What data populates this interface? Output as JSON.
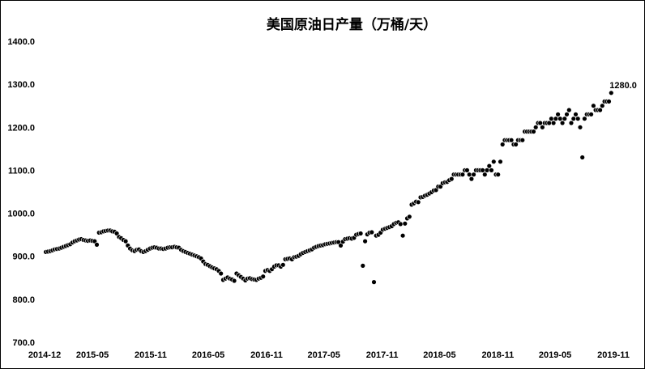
{
  "chart_data": {
    "type": "scatter",
    "title": "美国原油日产量（万桶/天）",
    "xlabel": "",
    "ylabel": "",
    "ylim": [
      700,
      1400
    ],
    "yticks": [
      "700.0",
      "800.0",
      "900.0",
      "1000.0",
      "1100.0",
      "1200.0",
      "1300.0",
      "1400.0"
    ],
    "xlim": [
      "2014-12",
      "2019-11"
    ],
    "xticks": [
      "2014-12",
      "2015-05",
      "2015-11",
      "2016-05",
      "2016-11",
      "2017-05",
      "2017-11",
      "2018-05",
      "2018-11",
      "2019-05",
      "2019-11"
    ],
    "grid": false,
    "legend": "none",
    "series_color": "#000000",
    "annotation": {
      "text": "1280.0",
      "x": "2019-10-25",
      "y": 1280
    },
    "points": [
      [
        "2014-12-05",
        910
      ],
      [
        "2014-12-12",
        911
      ],
      [
        "2014-12-19",
        912
      ],
      [
        "2014-12-26",
        914
      ],
      [
        "2015-01-02",
        916
      ],
      [
        "2015-01-09",
        917
      ],
      [
        "2015-01-16",
        918
      ],
      [
        "2015-01-23",
        920
      ],
      [
        "2015-01-30",
        922
      ],
      [
        "2015-02-06",
        924
      ],
      [
        "2015-02-13",
        926
      ],
      [
        "2015-02-20",
        928
      ],
      [
        "2015-02-27",
        932
      ],
      [
        "2015-03-06",
        935
      ],
      [
        "2015-03-13",
        937
      ],
      [
        "2015-03-20",
        939
      ],
      [
        "2015-03-27",
        940
      ],
      [
        "2015-04-03",
        938
      ],
      [
        "2015-04-10",
        937
      ],
      [
        "2015-04-17",
        936
      ],
      [
        "2015-04-24",
        937
      ],
      [
        "2015-05-01",
        936
      ],
      [
        "2015-05-08",
        935
      ],
      [
        "2015-05-15",
        927
      ],
      [
        "2015-05-22",
        955
      ],
      [
        "2015-05-29",
        956
      ],
      [
        "2015-06-05",
        958
      ],
      [
        "2015-06-12",
        959
      ],
      [
        "2015-06-19",
        960
      ],
      [
        "2015-06-26",
        960
      ],
      [
        "2015-07-03",
        958
      ],
      [
        "2015-07-10",
        957
      ],
      [
        "2015-07-17",
        953
      ],
      [
        "2015-07-24",
        945
      ],
      [
        "2015-07-31",
        942
      ],
      [
        "2015-08-07",
        938
      ],
      [
        "2015-08-14",
        935
      ],
      [
        "2015-08-21",
        925
      ],
      [
        "2015-08-28",
        918
      ],
      [
        "2015-09-04",
        914
      ],
      [
        "2015-09-11",
        912
      ],
      [
        "2015-09-18",
        915
      ],
      [
        "2015-09-25",
        916
      ],
      [
        "2015-10-02",
        912
      ],
      [
        "2015-10-09",
        910
      ],
      [
        "2015-10-16",
        912
      ],
      [
        "2015-10-23",
        915
      ],
      [
        "2015-10-30",
        918
      ],
      [
        "2015-11-06",
        920
      ],
      [
        "2015-11-13",
        921
      ],
      [
        "2015-11-20",
        920
      ],
      [
        "2015-11-27",
        918
      ],
      [
        "2015-12-04",
        918
      ],
      [
        "2015-12-11",
        917
      ],
      [
        "2015-12-18",
        918
      ],
      [
        "2015-12-25",
        920
      ],
      [
        "2016-01-01",
        921
      ],
      [
        "2016-01-08",
        921
      ],
      [
        "2016-01-15",
        922
      ],
      [
        "2016-01-22",
        921
      ],
      [
        "2016-01-29",
        920
      ],
      [
        "2016-02-05",
        915
      ],
      [
        "2016-02-12",
        912
      ],
      [
        "2016-02-19",
        910
      ],
      [
        "2016-02-26",
        908
      ],
      [
        "2016-03-04",
        906
      ],
      [
        "2016-03-11",
        904
      ],
      [
        "2016-03-18",
        902
      ],
      [
        "2016-03-25",
        900
      ],
      [
        "2016-04-01",
        898
      ],
      [
        "2016-04-08",
        895
      ],
      [
        "2016-04-15",
        888
      ],
      [
        "2016-04-22",
        882
      ],
      [
        "2016-04-29",
        880
      ],
      [
        "2016-05-06",
        877
      ],
      [
        "2016-05-13",
        874
      ],
      [
        "2016-05-20",
        872
      ],
      [
        "2016-05-27",
        870
      ],
      [
        "2016-06-03",
        866
      ],
      [
        "2016-06-10",
        860
      ],
      [
        "2016-06-17",
        845
      ],
      [
        "2016-06-24",
        848
      ],
      [
        "2016-07-01",
        851
      ],
      [
        "2016-07-08",
        848
      ],
      [
        "2016-07-15",
        846
      ],
      [
        "2016-07-22",
        843
      ],
      [
        "2016-07-29",
        860
      ],
      [
        "2016-08-05",
        856
      ],
      [
        "2016-08-12",
        852
      ],
      [
        "2016-08-19",
        848
      ],
      [
        "2016-08-26",
        844
      ],
      [
        "2016-09-02",
        848
      ],
      [
        "2016-09-09",
        849
      ],
      [
        "2016-09-16",
        847
      ],
      [
        "2016-09-23",
        846
      ],
      [
        "2016-09-30",
        845
      ],
      [
        "2016-10-07",
        848
      ],
      [
        "2016-10-14",
        850
      ],
      [
        "2016-10-21",
        853
      ],
      [
        "2016-10-28",
        866
      ],
      [
        "2016-11-04",
        868
      ],
      [
        "2016-11-11",
        866
      ],
      [
        "2016-11-18",
        870
      ],
      [
        "2016-11-25",
        876
      ],
      [
        "2016-12-02",
        879
      ],
      [
        "2016-12-09",
        879
      ],
      [
        "2016-12-16",
        876
      ],
      [
        "2016-12-23",
        880
      ],
      [
        "2016-12-30",
        893
      ],
      [
        "2017-01-06",
        894
      ],
      [
        "2017-01-13",
        895
      ],
      [
        "2017-01-20",
        893
      ],
      [
        "2017-01-27",
        898
      ],
      [
        "2017-02-03",
        899
      ],
      [
        "2017-02-10",
        901
      ],
      [
        "2017-02-17",
        905
      ],
      [
        "2017-02-24",
        908
      ],
      [
        "2017-03-03",
        910
      ],
      [
        "2017-03-10",
        912
      ],
      [
        "2017-03-17",
        914
      ],
      [
        "2017-03-24",
        916
      ],
      [
        "2017-03-31",
        920
      ],
      [
        "2017-04-07",
        922
      ],
      [
        "2017-04-14",
        924
      ],
      [
        "2017-04-21",
        925
      ],
      [
        "2017-04-28",
        926
      ],
      [
        "2017-05-05",
        928
      ],
      [
        "2017-05-12",
        929
      ],
      [
        "2017-05-19",
        930
      ],
      [
        "2017-05-26",
        931
      ],
      [
        "2017-06-02",
        932
      ],
      [
        "2017-06-09",
        933
      ],
      [
        "2017-06-16",
        933
      ],
      [
        "2017-06-23",
        925
      ],
      [
        "2017-06-30",
        934
      ],
      [
        "2017-07-07",
        940
      ],
      [
        "2017-07-14",
        941
      ],
      [
        "2017-07-21",
        942
      ],
      [
        "2017-07-28",
        941
      ],
      [
        "2017-08-04",
        943
      ],
      [
        "2017-08-11",
        950
      ],
      [
        "2017-08-18",
        952
      ],
      [
        "2017-08-25",
        953
      ],
      [
        "2017-09-01",
        878
      ],
      [
        "2017-09-08",
        935
      ],
      [
        "2017-09-15",
        951
      ],
      [
        "2017-09-22",
        955
      ],
      [
        "2017-09-29",
        956
      ],
      [
        "2017-10-06",
        840
      ],
      [
        "2017-10-13",
        948
      ],
      [
        "2017-10-20",
        950
      ],
      [
        "2017-10-27",
        955
      ],
      [
        "2017-11-03",
        962
      ],
      [
        "2017-11-10",
        964
      ],
      [
        "2017-11-17",
        966
      ],
      [
        "2017-11-24",
        968
      ],
      [
        "2017-12-01",
        970
      ],
      [
        "2017-12-08",
        975
      ],
      [
        "2017-12-15",
        978
      ],
      [
        "2017-12-22",
        979
      ],
      [
        "2017-12-29",
        975
      ],
      [
        "2018-01-05",
        948
      ],
      [
        "2018-01-12",
        976
      ],
      [
        "2018-01-19",
        988
      ],
      [
        "2018-01-26",
        992
      ],
      [
        "2018-02-02",
        1020
      ],
      [
        "2018-02-09",
        1023
      ],
      [
        "2018-02-16",
        1027
      ],
      [
        "2018-02-23",
        1026
      ],
      [
        "2018-03-02",
        1037
      ],
      [
        "2018-03-09",
        1038
      ],
      [
        "2018-03-16",
        1041
      ],
      [
        "2018-03-23",
        1043
      ],
      [
        "2018-03-30",
        1046
      ],
      [
        "2018-04-06",
        1049
      ],
      [
        "2018-04-13",
        1053
      ],
      [
        "2018-04-20",
        1054
      ],
      [
        "2018-04-27",
        1062
      ],
      [
        "2018-05-04",
        1062
      ],
      [
        "2018-05-11",
        1070
      ],
      [
        "2018-05-18",
        1072
      ],
      [
        "2018-05-25",
        1073
      ],
      [
        "2018-06-01",
        1077
      ],
      [
        "2018-06-08",
        1080
      ],
      [
        "2018-06-15",
        1090
      ],
      [
        "2018-06-22",
        1090
      ],
      [
        "2018-06-29",
        1090
      ],
      [
        "2018-07-06",
        1090
      ],
      [
        "2018-07-13",
        1090
      ],
      [
        "2018-07-20",
        1100
      ],
      [
        "2018-07-27",
        1100
      ],
      [
        "2018-08-03",
        1090
      ],
      [
        "2018-08-10",
        1080
      ],
      [
        "2018-08-17",
        1090
      ],
      [
        "2018-08-24",
        1100
      ],
      [
        "2018-08-31",
        1100
      ],
      [
        "2018-09-07",
        1100
      ],
      [
        "2018-09-14",
        1100
      ],
      [
        "2018-09-21",
        1090
      ],
      [
        "2018-09-28",
        1100
      ],
      [
        "2018-10-05",
        1110
      ],
      [
        "2018-10-12",
        1100
      ],
      [
        "2018-10-19",
        1120
      ],
      [
        "2018-10-26",
        1090
      ],
      [
        "2018-11-02",
        1090
      ],
      [
        "2018-11-09",
        1120
      ],
      [
        "2018-11-16",
        1160
      ],
      [
        "2018-11-23",
        1170
      ],
      [
        "2018-11-30",
        1170
      ],
      [
        "2018-12-07",
        1170
      ],
      [
        "2018-12-14",
        1170
      ],
      [
        "2018-12-21",
        1160
      ],
      [
        "2018-12-28",
        1160
      ],
      [
        "2019-01-04",
        1170
      ],
      [
        "2019-01-11",
        1170
      ],
      [
        "2019-01-18",
        1170
      ],
      [
        "2019-01-25",
        1190
      ],
      [
        "2019-02-01",
        1190
      ],
      [
        "2019-02-08",
        1190
      ],
      [
        "2019-02-15",
        1190
      ],
      [
        "2019-02-22",
        1190
      ],
      [
        "2019-03-01",
        1200
      ],
      [
        "2019-03-08",
        1210
      ],
      [
        "2019-03-15",
        1210
      ],
      [
        "2019-03-22",
        1200
      ],
      [
        "2019-03-29",
        1210
      ],
      [
        "2019-04-05",
        1210
      ],
      [
        "2019-04-12",
        1210
      ],
      [
        "2019-04-19",
        1220
      ],
      [
        "2019-04-26",
        1210
      ],
      [
        "2019-05-03",
        1220
      ],
      [
        "2019-05-10",
        1230
      ],
      [
        "2019-05-17",
        1220
      ],
      [
        "2019-05-24",
        1210
      ],
      [
        "2019-05-31",
        1220
      ],
      [
        "2019-06-07",
        1230
      ],
      [
        "2019-06-14",
        1240
      ],
      [
        "2019-06-21",
        1210
      ],
      [
        "2019-06-28",
        1220
      ],
      [
        "2019-07-05",
        1230
      ],
      [
        "2019-07-12",
        1220
      ],
      [
        "2019-07-19",
        1200
      ],
      [
        "2019-07-26",
        1130
      ],
      [
        "2019-08-02",
        1220
      ],
      [
        "2019-08-09",
        1230
      ],
      [
        "2019-08-16",
        1230
      ],
      [
        "2019-08-23",
        1230
      ],
      [
        "2019-08-30",
        1250
      ],
      [
        "2019-09-06",
        1240
      ],
      [
        "2019-09-13",
        1240
      ],
      [
        "2019-09-20",
        1240
      ],
      [
        "2019-09-27",
        1250
      ],
      [
        "2019-10-04",
        1260
      ],
      [
        "2019-10-11",
        1260
      ],
      [
        "2019-10-18",
        1260
      ],
      [
        "2019-10-25",
        1280
      ]
    ]
  }
}
